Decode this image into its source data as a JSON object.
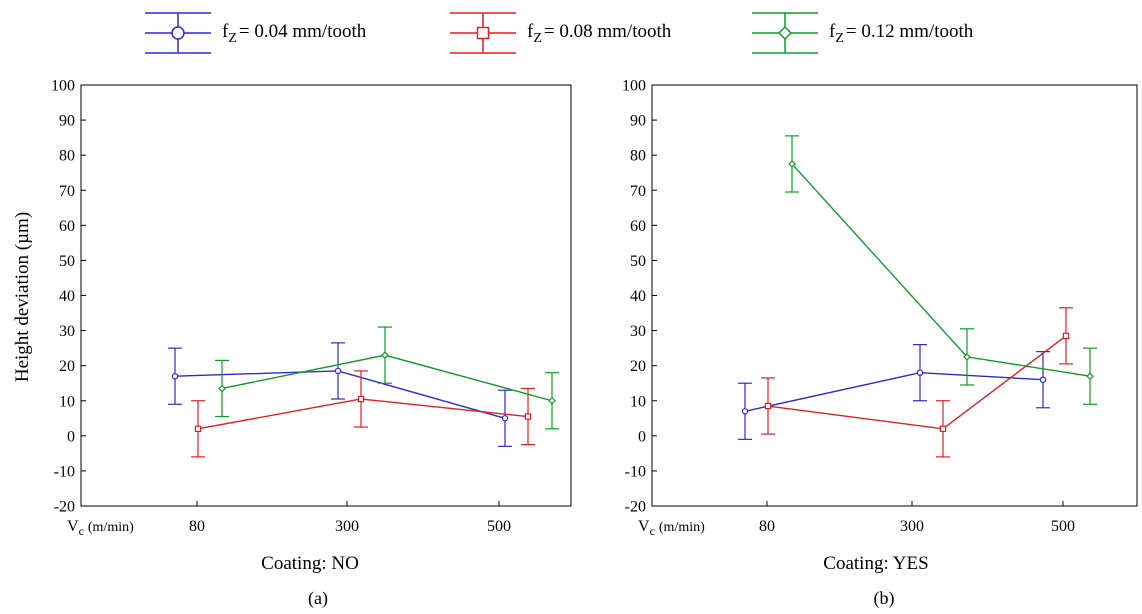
{
  "legend": [
    {
      "prefix": "f",
      "sub": "Z",
      "text": "= 0.04 mm/tooth",
      "color": "#2b2bd0",
      "marker": "circle"
    },
    {
      "prefix": "f",
      "sub": "Z",
      "text": "= 0.08 mm/tooth",
      "color": "#e02020",
      "marker": "square"
    },
    {
      "prefix": "f",
      "sub": "Z",
      "text": "= 0.12 mm/tooth",
      "color": "#109a2a",
      "marker": "diamond"
    }
  ],
  "ylabel": "Height deviation (µm)",
  "x_axis_prefix": {
    "main": "V",
    "sub": "c",
    "unit": "(m/min)"
  },
  "chart_data": [
    {
      "type": "line",
      "panel_label": "(a)",
      "xlabel": "Coating: NO",
      "categories": [
        "80",
        "300",
        "500"
      ],
      "ylim": [
        -20,
        100
      ],
      "yticks": [
        -20,
        -10,
        0,
        10,
        20,
        30,
        40,
        50,
        60,
        70,
        80,
        90,
        100
      ],
      "grid": false,
      "error_bars": true,
      "series": [
        {
          "name": "fZ = 0.04 mm/tooth",
          "color": "#2b2bd0",
          "marker": "circle",
          "values": [
            17,
            18.5,
            5
          ],
          "errors": [
            8,
            8,
            8
          ]
        },
        {
          "name": "fZ = 0.08 mm/tooth",
          "color": "#e02020",
          "marker": "square",
          "values": [
            2,
            10.5,
            5.5
          ],
          "errors": [
            8,
            8,
            8
          ]
        },
        {
          "name": "fZ = 0.12 mm/tooth",
          "color": "#109a2a",
          "marker": "diamond",
          "values": [
            13.5,
            23,
            10
          ],
          "errors": [
            8,
            8,
            8
          ]
        }
      ]
    },
    {
      "type": "line",
      "panel_label": "(b)",
      "xlabel": "Coating: YES",
      "categories": [
        "80",
        "300",
        "500"
      ],
      "ylim": [
        -20,
        100
      ],
      "yticks": [
        -20,
        -10,
        0,
        10,
        20,
        30,
        40,
        50,
        60,
        70,
        80,
        90,
        100
      ],
      "grid": false,
      "error_bars": true,
      "series": [
        {
          "name": "fZ = 0.04 mm/tooth",
          "color": "#2b2bd0",
          "marker": "circle",
          "values": [
            7,
            18,
            16
          ],
          "errors": [
            8,
            8,
            8
          ]
        },
        {
          "name": "fZ = 0.08 mm/tooth",
          "color": "#e02020",
          "marker": "square",
          "values": [
            8.5,
            2,
            28.5
          ],
          "errors": [
            8,
            8,
            8
          ]
        },
        {
          "name": "fZ = 0.12 mm/tooth",
          "color": "#109a2a",
          "marker": "diamond",
          "values": [
            77.5,
            22.5,
            17
          ],
          "errors": [
            8,
            8,
            8
          ]
        }
      ]
    }
  ]
}
